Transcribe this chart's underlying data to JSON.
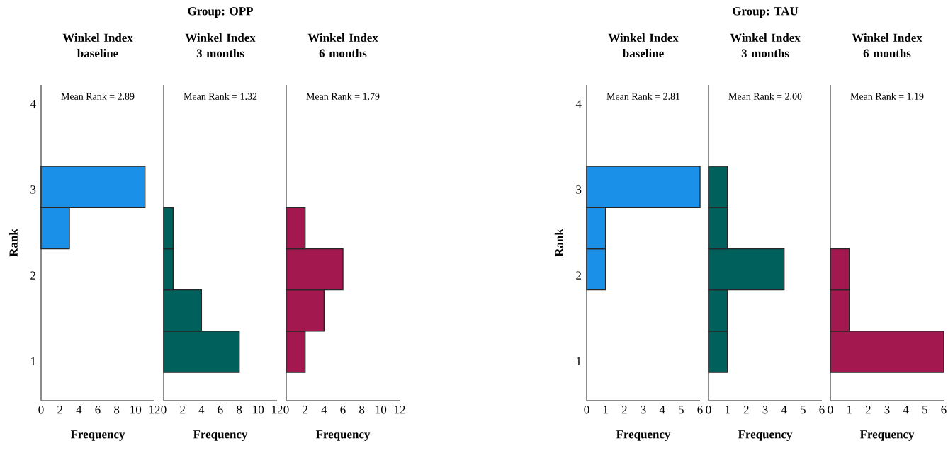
{
  "chart_data": [
    {
      "type": "histogram",
      "orientation": "horizontal",
      "subtitle": "Winkel Index baseline",
      "annotations": [
        "Mean Rank = 2.89"
      ],
      "xlabel": "Frequency",
      "ylabel": "Rank",
      "color": "#1a90e8",
      "bins": [
        0.87,
        1.35,
        1.83,
        2.31,
        2.79,
        3.27
      ],
      "values": [
        0,
        0,
        0,
        3,
        11
      ],
      "xlim": [
        0,
        12
      ],
      "xticks": [
        0,
        2,
        4,
        6,
        8,
        10,
        12
      ],
      "ylim": [
        0.54,
        4.22
      ],
      "yticks": [
        1,
        2,
        3,
        4
      ]
    },
    {
      "type": "histogram",
      "orientation": "horizontal",
      "title": "Group: OPP",
      "subtitle": "Winkel Index 3 months",
      "annotations": [
        "Mean Rank = 1.32"
      ],
      "xlabel": "Frequency",
      "color": "#00605c",
      "bins": [
        0.87,
        1.35,
        1.83,
        2.31,
        2.79,
        3.27
      ],
      "values": [
        8,
        4,
        1,
        1,
        0
      ],
      "xlim": [
        0,
        12
      ],
      "xticks": [
        0,
        2,
        4,
        6,
        8,
        10,
        12
      ],
      "ylim": [
        0.54,
        4.22
      ],
      "yticks": [
        1,
        2,
        3,
        4
      ],
      "tick_labels": "x"
    },
    {
      "type": "histogram",
      "orientation": "horizontal",
      "subtitle": "Winkel Index 6 months",
      "annotations": [
        "Mean Rank = 1.79"
      ],
      "xlabel": "Frequency",
      "color": "#a3184f",
      "bins": [
        0.87,
        1.35,
        1.83,
        2.31,
        2.79,
        3.27
      ],
      "values": [
        2,
        4,
        6,
        2,
        0
      ],
      "xlim": [
        0,
        12
      ],
      "xticks": [
        0,
        2,
        4,
        6,
        8,
        10,
        12
      ],
      "ylim": [
        0.54,
        4.22
      ],
      "yticks": [
        1,
        2,
        3,
        4
      ],
      "tick_labels": "x"
    },
    {
      "type": "histogram",
      "orientation": "horizontal",
      "subtitle": "Winkel Index baseline",
      "annotations": [
        "Mean Rank = 2.81"
      ],
      "xlabel": "Frequency",
      "ylabel": "Rank",
      "color": "#1a90e8",
      "bins": [
        0.87,
        1.35,
        1.83,
        2.31,
        2.79,
        3.27
      ],
      "values": [
        0,
        0,
        1,
        1,
        6
      ],
      "xlim": [
        0,
        6
      ],
      "xticks": [
        0,
        1,
        2,
        3,
        4,
        5,
        6
      ],
      "ylim": [
        0.54,
        4.22
      ],
      "yticks": [
        1,
        2,
        3,
        4
      ]
    },
    {
      "type": "histogram",
      "orientation": "horizontal",
      "title": "Group: TAU",
      "subtitle": "Winkel Index 3 months",
      "annotations": [
        "Mean Rank = 2.00"
      ],
      "xlabel": "Frequency",
      "color": "#00605c",
      "bins": [
        0.87,
        1.35,
        1.83,
        2.31,
        2.79,
        3.27
      ],
      "values": [
        1,
        1,
        4,
        1,
        1
      ],
      "xlim": [
        0,
        6
      ],
      "xticks": [
        0,
        1,
        2,
        3,
        4,
        5,
        6
      ],
      "ylim": [
        0.54,
        4.22
      ],
      "yticks": [
        1,
        2,
        3,
        4
      ],
      "tick_labels": "x"
    },
    {
      "type": "histogram",
      "orientation": "horizontal",
      "subtitle": "Winkel Index 6 months",
      "annotations": [
        "Mean Rank = 1.19"
      ],
      "xlabel": "Frequency",
      "color": "#a3184f",
      "bins": [
        0.87,
        1.35,
        1.83,
        2.31,
        2.79,
        3.27
      ],
      "values": [
        6,
        1,
        1,
        0,
        0
      ],
      "xlim": [
        0,
        6
      ],
      "xticks": [
        0,
        1,
        2,
        3,
        4,
        5,
        6
      ],
      "ylim": [
        0.54,
        4.22
      ],
      "yticks": [
        1,
        2,
        3,
        4
      ],
      "tick_labels": "x"
    }
  ]
}
